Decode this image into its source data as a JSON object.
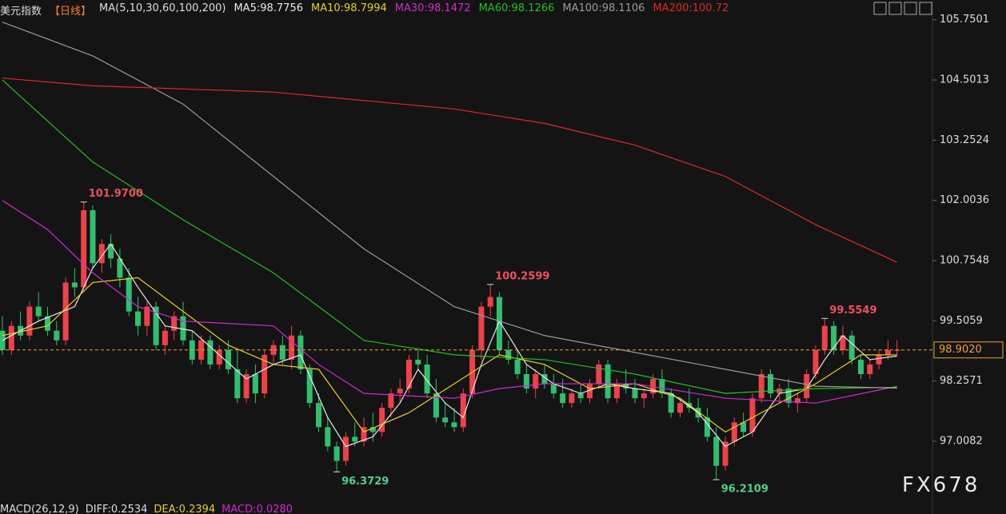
{
  "chart_data": {
    "type": "candlestick",
    "title": "美元指数",
    "period": "【日线】",
    "indicator": "MA(5,10,30,60,100,200)",
    "ylim": [
      95.88,
      106.16
    ],
    "yticks": [
      105.7501,
      104.5013,
      103.2524,
      102.0036,
      100.7548,
      99.5059,
      98.2571,
      97.0082
    ],
    "up_color": "#f0404a",
    "down_color": "#2fbf6f",
    "ohlc": [
      [
        99.3,
        99.6,
        98.8,
        98.9
      ],
      [
        98.9,
        99.5,
        98.8,
        99.4
      ],
      [
        99.4,
        99.7,
        99.1,
        99.2
      ],
      [
        99.2,
        99.9,
        99.1,
        99.8
      ],
      [
        99.8,
        100.1,
        99.5,
        99.6
      ],
      [
        99.6,
        99.8,
        99.2,
        99.3
      ],
      [
        99.3,
        99.5,
        99.0,
        99.1
      ],
      [
        99.1,
        100.4,
        99.0,
        100.3
      ],
      [
        100.3,
        100.6,
        100.0,
        100.2
      ],
      [
        100.2,
        101.97,
        100.1,
        101.8
      ],
      [
        101.8,
        101.9,
        100.6,
        100.7
      ],
      [
        100.7,
        101.2,
        100.5,
        101.1
      ],
      [
        101.1,
        101.3,
        100.6,
        100.8
      ],
      [
        100.8,
        101.0,
        100.2,
        100.4
      ],
      [
        100.4,
        100.6,
        99.6,
        99.7
      ],
      [
        99.7,
        100.0,
        99.2,
        99.4
      ],
      [
        99.4,
        99.9,
        99.2,
        99.8
      ],
      [
        99.8,
        99.9,
        98.9,
        99.0
      ],
      [
        99.0,
        99.4,
        98.8,
        99.3
      ],
      [
        99.3,
        99.7,
        99.1,
        99.6
      ],
      [
        99.6,
        99.9,
        99.0,
        99.1
      ],
      [
        99.1,
        99.3,
        98.6,
        98.7
      ],
      [
        98.7,
        99.2,
        98.6,
        99.1
      ],
      [
        99.1,
        99.2,
        98.5,
        98.6
      ],
      [
        98.6,
        99.0,
        98.5,
        98.9
      ],
      [
        98.9,
        99.1,
        98.4,
        98.5
      ],
      [
        98.5,
        98.9,
        97.8,
        97.9
      ],
      [
        97.9,
        98.5,
        97.8,
        98.4
      ],
      [
        98.4,
        98.6,
        97.8,
        98.0
      ],
      [
        98.0,
        98.9,
        97.9,
        98.8
      ],
      [
        98.8,
        99.1,
        98.6,
        99.0
      ],
      [
        99.0,
        99.2,
        98.6,
        98.7
      ],
      [
        98.7,
        99.4,
        98.5,
        99.2
      ],
      [
        99.2,
        99.3,
        98.4,
        98.5
      ],
      [
        98.5,
        98.6,
        97.7,
        97.8
      ],
      [
        97.8,
        98.0,
        97.2,
        97.3
      ],
      [
        97.3,
        97.5,
        96.8,
        96.9
      ],
      [
        96.9,
        97.0,
        96.3729,
        96.6
      ],
      [
        96.6,
        97.2,
        96.5,
        97.1
      ],
      [
        97.1,
        97.4,
        96.9,
        97.0
      ],
      [
        97.0,
        97.5,
        96.9,
        97.3
      ],
      [
        97.3,
        97.6,
        97.0,
        97.2
      ],
      [
        97.2,
        97.8,
        97.1,
        97.7
      ],
      [
        97.7,
        98.1,
        97.5,
        98.0
      ],
      [
        98.0,
        98.3,
        97.8,
        98.1
      ],
      [
        98.1,
        98.8,
        98.0,
        98.7
      ],
      [
        98.7,
        98.9,
        98.5,
        98.6
      ],
      [
        98.6,
        98.8,
        97.9,
        98.0
      ],
      [
        98.0,
        98.3,
        97.4,
        97.5
      ],
      [
        97.5,
        97.8,
        97.3,
        97.4
      ],
      [
        97.4,
        97.7,
        97.2,
        97.3
      ],
      [
        97.3,
        98.1,
        97.2,
        98.0
      ],
      [
        98.0,
        99.0,
        97.9,
        98.9
      ],
      [
        98.9,
        99.9,
        98.7,
        99.8
      ],
      [
        99.8,
        100.2599,
        99.6,
        100.0
      ],
      [
        100.0,
        100.1,
        98.8,
        98.9
      ],
      [
        98.9,
        99.1,
        98.6,
        98.7
      ],
      [
        98.7,
        98.9,
        98.3,
        98.4
      ],
      [
        98.4,
        98.6,
        98.0,
        98.1
      ],
      [
        98.1,
        98.5,
        97.9,
        98.4
      ],
      [
        98.4,
        98.6,
        98.1,
        98.2
      ],
      [
        98.2,
        98.4,
        97.9,
        98.0
      ],
      [
        98.0,
        98.3,
        97.7,
        97.8
      ],
      [
        97.8,
        98.1,
        97.7,
        98.0
      ],
      [
        98.0,
        98.2,
        97.8,
        97.9
      ],
      [
        97.9,
        98.3,
        97.8,
        98.2
      ],
      [
        98.2,
        98.7,
        98.1,
        98.6
      ],
      [
        98.6,
        98.7,
        97.8,
        97.9
      ],
      [
        97.9,
        98.3,
        97.8,
        98.2
      ],
      [
        98.2,
        98.5,
        98.0,
        98.1
      ],
      [
        98.1,
        98.3,
        97.8,
        97.9
      ],
      [
        97.9,
        98.1,
        97.7,
        98.0
      ],
      [
        98.0,
        98.4,
        97.9,
        98.3
      ],
      [
        98.3,
        98.5,
        97.9,
        98.0
      ],
      [
        98.0,
        98.1,
        97.5,
        97.6
      ],
      [
        97.6,
        97.9,
        97.5,
        97.8
      ],
      [
        97.8,
        98.1,
        97.6,
        97.7
      ],
      [
        97.7,
        97.9,
        97.4,
        97.5
      ],
      [
        97.5,
        97.7,
        97.0,
        97.1
      ],
      [
        97.1,
        97.3,
        96.2109,
        96.5
      ],
      [
        96.5,
        97.1,
        96.4,
        97.0
      ],
      [
        97.0,
        97.5,
        96.9,
        97.4
      ],
      [
        97.4,
        97.6,
        97.1,
        97.2
      ],
      [
        97.2,
        98.0,
        97.1,
        97.9
      ],
      [
        97.9,
        98.5,
        97.8,
        98.4
      ],
      [
        98.4,
        98.5,
        97.9,
        98.0
      ],
      [
        98.0,
        98.2,
        97.8,
        98.1
      ],
      [
        98.1,
        98.3,
        97.7,
        97.8
      ],
      [
        97.8,
        98.0,
        97.6,
        97.9
      ],
      [
        97.9,
        98.5,
        97.8,
        98.4
      ],
      [
        98.4,
        99.0,
        98.3,
        98.9
      ],
      [
        98.9,
        99.5549,
        98.8,
        99.4
      ],
      [
        99.4,
        99.5,
        98.8,
        98.9
      ],
      [
        98.9,
        99.4,
        98.8,
        99.2
      ],
      [
        99.2,
        99.3,
        98.6,
        98.7
      ],
      [
        98.7,
        98.8,
        98.3,
        98.4
      ],
      [
        98.4,
        98.7,
        98.3,
        98.6
      ],
      [
        98.6,
        98.9,
        98.5,
        98.8
      ],
      [
        98.8,
        99.1,
        98.7,
        98.9
      ],
      [
        98.9,
        99.1,
        98.8,
        98.902
      ]
    ],
    "series": [
      {
        "name": "MA5:98.7756",
        "color": "#e8e8e8",
        "x": [
          0,
          4,
          8,
          10,
          12,
          15,
          18,
          21,
          24,
          27,
          30,
          33,
          36,
          38,
          41,
          44,
          46,
          49,
          51,
          53,
          55,
          58,
          61,
          64,
          67,
          70,
          74,
          77,
          80,
          83,
          86,
          89,
          91,
          93,
          96,
          99
        ],
        "values": [
          99.1,
          99.5,
          99.8,
          100.6,
          101.1,
          100.2,
          99.4,
          99.3,
          98.8,
          98.3,
          98.6,
          98.8,
          97.5,
          96.9,
          97.1,
          97.8,
          98.5,
          97.8,
          97.5,
          98.6,
          99.5,
          98.6,
          98.2,
          98.0,
          98.2,
          98.1,
          98.0,
          97.6,
          96.9,
          97.2,
          98.0,
          98.1,
          98.7,
          99.2,
          98.7,
          98.7756
        ]
      },
      {
        "name": "MA10:98.7994",
        "color": "#e6d21e",
        "x": [
          0,
          5,
          10,
          15,
          20,
          25,
          30,
          35,
          40,
          45,
          50,
          55,
          60,
          65,
          70,
          75,
          80,
          85,
          90,
          95,
          99
        ],
        "values": [
          99.2,
          99.4,
          100.3,
          100.4,
          99.7,
          99.0,
          98.6,
          98.5,
          97.2,
          97.6,
          98.2,
          98.8,
          98.6,
          98.1,
          98.2,
          97.9,
          97.2,
          97.7,
          98.2,
          98.8,
          98.7994
        ]
      },
      {
        "name": "MA30:98.1472",
        "color": "#d22ad2",
        "x": [
          0,
          5,
          10,
          15,
          20,
          30,
          35,
          40,
          50,
          55,
          60,
          70,
          80,
          90,
          99
        ],
        "values": [
          102.0,
          101.4,
          100.5,
          99.8,
          99.5,
          99.4,
          98.6,
          98.0,
          97.9,
          98.1,
          98.2,
          98.2,
          97.9,
          97.8,
          98.1472
        ]
      },
      {
        "name": "MA60:98.1266",
        "color": "#22c022",
        "x": [
          0,
          10,
          20,
          30,
          40,
          50,
          60,
          70,
          80,
          90,
          99
        ],
        "values": [
          104.5,
          102.8,
          101.6,
          100.5,
          99.1,
          98.8,
          98.7,
          98.4,
          98.0,
          98.1,
          98.1266
        ]
      },
      {
        "name": "MA100:98.1106",
        "color": "#9a9a9a",
        "x": [
          0,
          10,
          20,
          30,
          40,
          50,
          60,
          70,
          80,
          90,
          99
        ],
        "values": [
          105.7,
          105.0,
          104.0,
          102.5,
          101.0,
          99.8,
          99.2,
          98.85,
          98.5,
          98.15,
          98.1106
        ]
      },
      {
        "name": "MA200:100.72",
        "color": "#e02828",
        "x": [
          0,
          10,
          30,
          50,
          60,
          70,
          80,
          90,
          99
        ],
        "values": [
          104.54,
          104.38,
          104.25,
          103.9,
          103.6,
          103.15,
          102.5,
          101.5,
          100.72
        ]
      }
    ],
    "annotations": [
      {
        "index": 9,
        "value": 101.97,
        "label": "101.9700",
        "kind": "high"
      },
      {
        "index": 54,
        "value": 100.2599,
        "label": "100.2599",
        "kind": "high"
      },
      {
        "index": 91,
        "value": 99.5549,
        "label": "99.5549",
        "kind": "high"
      },
      {
        "index": 37,
        "value": 96.3729,
        "label": "96.3729",
        "kind": "low"
      },
      {
        "index": 79,
        "value": 96.2109,
        "label": "96.2109",
        "kind": "low"
      }
    ],
    "current": {
      "value": 98.902,
      "label": "98.9020"
    },
    "macd": {
      "title": "MACD(26,12,9)",
      "items": [
        "DIFF:0.2534",
        "DEA:0.2394",
        "MACD:0.0280"
      ]
    },
    "watermark": "FX678"
  }
}
